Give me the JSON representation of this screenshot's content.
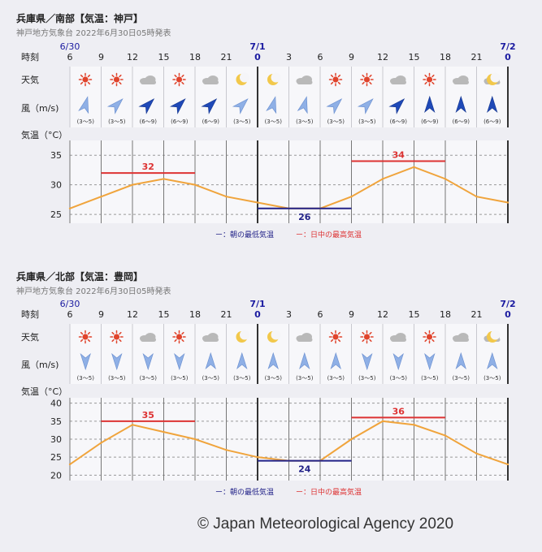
{
  "copyright": "© Japan Meteorological Agency 2020",
  "labels": {
    "time": "時刻",
    "weather": "天気",
    "wind": "風（m/s)",
    "temp": "気温（°C）",
    "legend_min": "ー：朝の最低気温",
    "legend_max": "ー：日中の最高気温"
  },
  "date_labels": [
    "6/30",
    "7/1",
    "7/2"
  ],
  "hours": [
    "6",
    "9",
    "12",
    "15",
    "18",
    "21",
    "0",
    "3",
    "6",
    "9",
    "12",
    "15",
    "18",
    "21",
    "0"
  ],
  "colors": {
    "max": "#dd3333",
    "min": "#222288",
    "line": "#f0a43c",
    "arrow": "#4a78c8",
    "day": "#1a1aa0"
  },
  "panels": [
    {
      "title": "兵庫県／南部【気温：神戸】",
      "subtitle": "神戸地方気象台 2022年6月30日05時発表",
      "weather_icons": [
        "sun-icon",
        "sun-icon",
        "cloud-icon",
        "sun-icon",
        "cloud-icon",
        "moon-icon",
        "moon-icon",
        "cloud-icon",
        "sun-icon",
        "sun-icon",
        "cloud-icon",
        "sun-icon",
        "cloud-icon",
        "cloud-icon",
        "moon-icon"
      ],
      "wind_dir_deg": [
        15,
        45,
        45,
        45,
        45,
        45,
        15,
        15,
        45,
        45,
        45,
        0,
        0,
        0
      ],
      "wind_strong": [
        false,
        false,
        true,
        true,
        true,
        false,
        false,
        false,
        false,
        false,
        true,
        true,
        true,
        true
      ],
      "wind_speeds": [
        "(3〜5)",
        "(3〜5)",
        "(6〜9)",
        "(6〜9)",
        "(6〜9)",
        "(3〜5)",
        "(3〜5)",
        "(3〜5)",
        "(3〜5)",
        "(3〜5)",
        "(6〜9)",
        "(6〜9)",
        "(6〜9)",
        "(6〜9)"
      ],
      "chart_data": {
        "type": "line",
        "x": [
          "6",
          "9",
          "12",
          "15",
          "18",
          "21",
          "0",
          "3",
          "6",
          "9",
          "12",
          "15",
          "18",
          "21",
          "0"
        ],
        "values": [
          26,
          28,
          30,
          31,
          30,
          28,
          27,
          26,
          26,
          28,
          31,
          33,
          31,
          28,
          27
        ],
        "y_ticks": [
          25,
          30,
          35
        ],
        "ylim": [
          23.5,
          37.5
        ],
        "ylabel": "気温（°C）",
        "max_markers": [
          {
            "from": 1,
            "to": 4,
            "value": 32,
            "label": "32"
          },
          {
            "from": 9,
            "to": 12,
            "value": 34,
            "label": "34"
          }
        ],
        "min_markers": [
          {
            "from": 6,
            "to": 9,
            "value": 26,
            "label": "26"
          }
        ]
      }
    },
    {
      "title": "兵庫県／北部【気温：豊岡】",
      "subtitle": "神戸地方気象台 2022年6月30日05時発表",
      "weather_icons": [
        "sun-icon",
        "sun-icon",
        "cloud-icon",
        "sun-icon",
        "cloud-icon",
        "moon-icon",
        "moon-icon",
        "cloud-icon",
        "sun-icon",
        "sun-icon",
        "cloud-icon",
        "sun-icon",
        "cloud-icon",
        "cloud-icon",
        "moon-icon"
      ],
      "wind_dir_deg": [
        180,
        180,
        180,
        180,
        0,
        0,
        0,
        0,
        0,
        180,
        180,
        180,
        0,
        0
      ],
      "wind_strong": [
        false,
        false,
        false,
        false,
        false,
        false,
        false,
        false,
        false,
        false,
        false,
        false,
        false,
        false
      ],
      "wind_speeds": [
        "(3〜5)",
        "(3〜5)",
        "(3〜5)",
        "(3〜5)",
        "(3〜5)",
        "(3〜5)",
        "(3〜5)",
        "(3〜5)",
        "(3〜5)",
        "(3〜5)",
        "(3〜5)",
        "(3〜5)",
        "(3〜5)",
        "(3〜5)"
      ],
      "chart_data": {
        "type": "line",
        "x": [
          "6",
          "9",
          "12",
          "15",
          "18",
          "21",
          "0",
          "3",
          "6",
          "9",
          "12",
          "15",
          "18",
          "21",
          "0"
        ],
        "values": [
          23,
          29,
          34,
          32,
          30,
          27,
          25,
          24,
          24,
          30,
          35,
          34,
          31,
          26,
          23
        ],
        "y_ticks": [
          20,
          25,
          30,
          35,
          40
        ],
        "ylim": [
          18.5,
          41.5
        ],
        "ylabel": "気温（°C）",
        "max_markers": [
          {
            "from": 1,
            "to": 4,
            "value": 35,
            "label": "35"
          },
          {
            "from": 9,
            "to": 12,
            "value": 36,
            "label": "36"
          }
        ],
        "min_markers": [
          {
            "from": 6,
            "to": 9,
            "value": 24,
            "label": "24"
          }
        ]
      }
    }
  ]
}
